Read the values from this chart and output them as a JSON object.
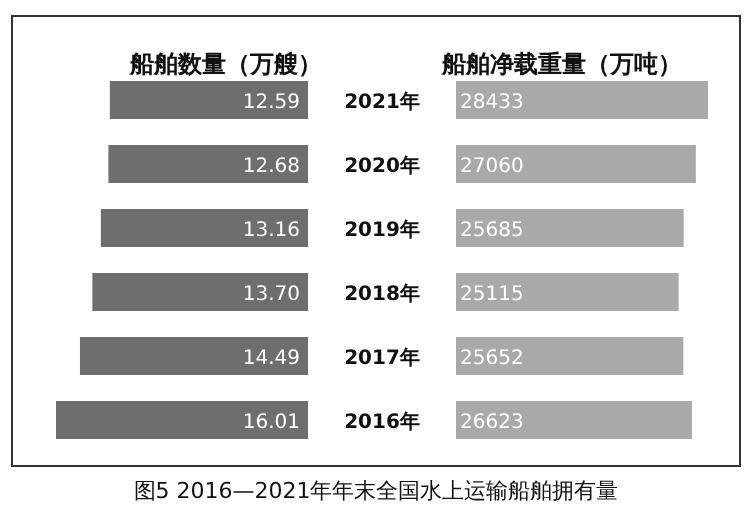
{
  "chart_data": [
    {
      "type": "bar",
      "orientation": "horizontal",
      "title": "船舶数量（万艘）",
      "categories": [
        "2021年",
        "2020年",
        "2019年",
        "2018年",
        "2017年",
        "2016年"
      ],
      "values": [
        12.59,
        12.68,
        13.16,
        13.7,
        14.49,
        16.01
      ],
      "value_labels": [
        "12.59",
        "12.68",
        "13.16",
        "13.70",
        "14.49",
        "16.01"
      ],
      "color": "#6e6e6e",
      "annotations": [
        "图5 2016—2021年年末全国水上运输船舶拥有量"
      ]
    },
    {
      "type": "bar",
      "orientation": "horizontal",
      "title": "船舶净载重量（万吨）",
      "categories": [
        null,
        null,
        null,
        null,
        null,
        null
      ],
      "values": [
        28433,
        27060,
        25685,
        25115,
        25652,
        26623
      ],
      "data_labels": true,
      "color": "#a9a9a9"
    }
  ]
}
